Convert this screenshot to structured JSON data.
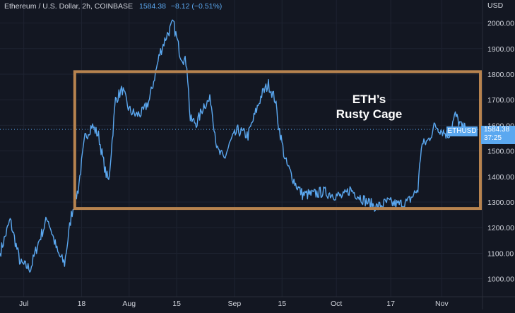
{
  "legend": {
    "symbol": "Ethereum / U.S. Dollar, 2h, COINBASE",
    "last_price": "1584.38",
    "change": "−8.12 (−0.51%)"
  },
  "axis": {
    "currency": "USD"
  },
  "annotation": {
    "line1": "ETH’s",
    "line2": "Rusty Cage"
  },
  "price_tag": {
    "symbol": "ETHUSD",
    "price": "1584.38",
    "countdown": "37:25"
  },
  "colors": {
    "background": "#131722",
    "line": "#5ba8f0",
    "box": "#b7834f",
    "grid": "#1e2331",
    "text": "#d1d4dc"
  },
  "chart_data": {
    "type": "line",
    "title": "Ethereum / U.S. Dollar, 2h, COINBASE",
    "series": [
      {
        "values": [
          [
            "2022-06-24",
            1100
          ],
          [
            "2022-06-27",
            1230
          ],
          [
            "2022-06-30",
            1060
          ],
          [
            "2022-07-03",
            1040
          ],
          [
            "2022-07-05",
            1130
          ],
          [
            "2022-07-08",
            1240
          ],
          [
            "2022-07-11",
            1100
          ],
          [
            "2022-07-13",
            1060
          ],
          [
            "2022-07-15",
            1250
          ],
          [
            "2022-07-17",
            1350
          ],
          [
            "2022-07-19",
            1550
          ],
          [
            "2022-07-21",
            1600
          ],
          [
            "2022-07-23",
            1560
          ],
          [
            "2022-07-25",
            1420
          ],
          [
            "2022-07-26",
            1380
          ],
          [
            "2022-07-28",
            1700
          ],
          [
            "2022-07-30",
            1740
          ],
          [
            "2022-08-01",
            1660
          ],
          [
            "2022-08-03",
            1640
          ],
          [
            "2022-08-05",
            1650
          ],
          [
            "2022-08-07",
            1700
          ],
          [
            "2022-08-08",
            1760
          ],
          [
            "2022-08-10",
            1880
          ],
          [
            "2022-08-12",
            1950
          ],
          [
            "2022-08-14",
            2000
          ],
          [
            "2022-08-16",
            1880
          ],
          [
            "2022-08-18",
            1840
          ],
          [
            "2022-08-19",
            1620
          ],
          [
            "2022-08-21",
            1610
          ],
          [
            "2022-08-23",
            1680
          ],
          [
            "2022-08-25",
            1700
          ],
          [
            "2022-08-27",
            1500
          ],
          [
            "2022-08-29",
            1470
          ],
          [
            "2022-08-31",
            1540
          ],
          [
            "2022-09-02",
            1580
          ],
          [
            "2022-09-05",
            1560
          ],
          [
            "2022-09-07",
            1640
          ],
          [
            "2022-09-09",
            1720
          ],
          [
            "2022-09-11",
            1760
          ],
          [
            "2022-09-13",
            1700
          ],
          [
            "2022-09-14",
            1600
          ],
          [
            "2022-09-16",
            1460
          ],
          [
            "2022-09-19",
            1370
          ],
          [
            "2022-09-21",
            1330
          ],
          [
            "2022-09-24",
            1330
          ],
          [
            "2022-09-27",
            1340
          ],
          [
            "2022-09-30",
            1330
          ],
          [
            "2022-10-03",
            1320
          ],
          [
            "2022-10-05",
            1350
          ],
          [
            "2022-10-07",
            1330
          ],
          [
            "2022-10-10",
            1300
          ],
          [
            "2022-10-13",
            1280
          ],
          [
            "2022-10-16",
            1300
          ],
          [
            "2022-10-19",
            1290
          ],
          [
            "2022-10-22",
            1300
          ],
          [
            "2022-10-25",
            1350
          ],
          [
            "2022-10-26",
            1520
          ],
          [
            "2022-10-28",
            1540
          ],
          [
            "2022-10-30",
            1600
          ],
          [
            "2022-11-01",
            1580
          ],
          [
            "2022-11-03",
            1560
          ],
          [
            "2022-11-05",
            1640
          ],
          [
            "2022-11-07",
            1590
          ],
          [
            "2022-11-08",
            1584.38
          ]
        ]
      }
    ],
    "y_ticks": [
      "2000.00",
      "1900.00",
      "1800.00",
      "1700.00",
      "1600.00",
      "1500.00",
      "1400.00",
      "1300.00",
      "1200.00",
      "1100.00",
      "1000.00"
    ],
    "x_ticks": [
      [
        "2022-07-01",
        "Jul"
      ],
      [
        "2022-07-18",
        "18"
      ],
      [
        "2022-08-01",
        "Aug"
      ],
      [
        "2022-08-15",
        "15"
      ],
      [
        "2022-09-01",
        "Sep"
      ],
      [
        "2022-09-15",
        "15"
      ],
      [
        "2022-10-01",
        "Oct"
      ],
      [
        "2022-10-17",
        "17"
      ],
      [
        "2022-11-01",
        "Nov"
      ]
    ],
    "ylim": [
      930,
      2090
    ],
    "xlim": [
      "2022-06-24",
      "2022-11-13"
    ],
    "box": {
      "from": "2022-07-16",
      "to": "2022-11-15",
      "low": 1275,
      "high": 1810
    },
    "last_price": 1584.38,
    "grid": true
  }
}
